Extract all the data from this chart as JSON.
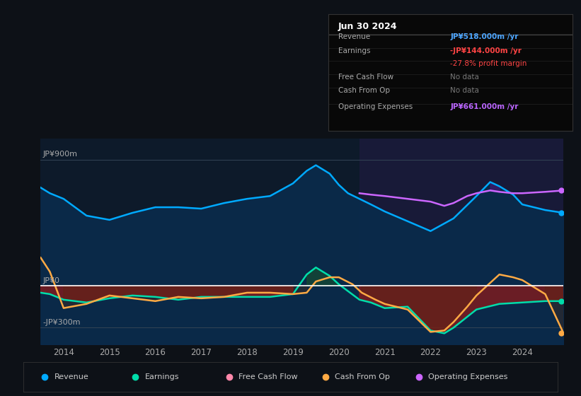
{
  "bg_color": "#0d1117",
  "chart_bg": "#0d1a2a",
  "forecast_bg": "#1a1a3a",
  "title_box_date": "Jun 30 2024",
  "info_rows": [
    {
      "label": "Revenue",
      "value": "JP¥518.000m /yr",
      "value_color": "#4da6ff",
      "bold": true
    },
    {
      "label": "Earnings",
      "value": "-JP¥144.000m /yr",
      "value_color": "#ff4444",
      "bold": true
    },
    {
      "label": "",
      "value": "-27.8% profit margin",
      "value_color": "#ff4444",
      "bold": false
    },
    {
      "label": "Free Cash Flow",
      "value": "No data",
      "value_color": "#777777",
      "bold": false
    },
    {
      "label": "Cash From Op",
      "value": "No data",
      "value_color": "#777777",
      "bold": false
    },
    {
      "label": "Operating Expenses",
      "value": "JP¥661.000m /yr",
      "value_color": "#bb66ff",
      "bold": true
    }
  ],
  "ylabel_top": "JP¥900m",
  "ylabel_zero": "JP¥0",
  "ylabel_bot": "-JP¥300m",
  "ylim": [
    -420,
    1050
  ],
  "y_zero": 0,
  "y_900": 900,
  "y_neg300": -300,
  "xlim_start": 2013.5,
  "xlim_end": 2024.9,
  "forecast_start": 2020.45,
  "xtick_labels": [
    "2014",
    "2015",
    "2016",
    "2017",
    "2018",
    "2019",
    "2020",
    "2021",
    "2022",
    "2023",
    "2024"
  ],
  "xtick_values": [
    2014,
    2015,
    2016,
    2017,
    2018,
    2019,
    2020,
    2021,
    2022,
    2023,
    2024
  ],
  "revenue_color": "#00aaff",
  "earnings_color": "#00ddaa",
  "fcf_color": "#ff88aa",
  "cashfromop_color": "#ffaa44",
  "opex_color": "#cc66ff",
  "revenue_fill_color": "#0a2a4a",
  "opex_fill_color": "#3a1a6a",
  "legend_items": [
    {
      "label": "Revenue",
      "color": "#00aaff"
    },
    {
      "label": "Earnings",
      "color": "#00ddaa"
    },
    {
      "label": "Free Cash Flow",
      "color": "#ff88aa"
    },
    {
      "label": "Cash From Op",
      "color": "#ffaa44"
    },
    {
      "label": "Operating Expenses",
      "color": "#cc66ff"
    }
  ],
  "revenue_x": [
    2013.5,
    2013.7,
    2014.0,
    2014.5,
    2015.0,
    2015.5,
    2016.0,
    2016.5,
    2017.0,
    2017.5,
    2018.0,
    2018.5,
    2019.0,
    2019.3,
    2019.5,
    2019.8,
    2020.0,
    2020.2,
    2020.45,
    2020.7,
    2021.0,
    2021.5,
    2022.0,
    2022.5,
    2023.0,
    2023.3,
    2023.5,
    2023.8,
    2024.0,
    2024.5,
    2024.9
  ],
  "revenue_y": [
    700,
    660,
    620,
    500,
    470,
    520,
    560,
    560,
    550,
    590,
    620,
    640,
    730,
    820,
    860,
    800,
    720,
    660,
    620,
    580,
    530,
    460,
    390,
    480,
    640,
    740,
    710,
    650,
    580,
    540,
    520
  ],
  "opex_x": [
    2020.45,
    2020.7,
    2021.0,
    2021.5,
    2022.0,
    2022.3,
    2022.5,
    2022.8,
    2023.0,
    2023.3,
    2023.5,
    2023.8,
    2024.0,
    2024.5,
    2024.9
  ],
  "opex_y": [
    660,
    650,
    640,
    620,
    600,
    570,
    590,
    640,
    660,
    680,
    670,
    660,
    660,
    670,
    680
  ],
  "earnings_x": [
    2013.5,
    2013.7,
    2014.0,
    2014.5,
    2015.0,
    2015.5,
    2016.0,
    2016.5,
    2017.0,
    2017.5,
    2018.0,
    2018.5,
    2019.0,
    2019.3,
    2019.5,
    2019.8,
    2020.0,
    2020.45,
    2020.7,
    2021.0,
    2021.5,
    2022.0,
    2022.3,
    2022.5,
    2023.0,
    2023.5,
    2024.0,
    2024.5,
    2024.9
  ],
  "earnings_y": [
    -50,
    -60,
    -100,
    -120,
    -90,
    -70,
    -80,
    -100,
    -80,
    -80,
    -80,
    -80,
    -60,
    80,
    130,
    70,
    10,
    -100,
    -120,
    -160,
    -150,
    -320,
    -340,
    -300,
    -170,
    -130,
    -120,
    -110,
    -110
  ],
  "cashfromop_x": [
    2013.5,
    2013.7,
    2014.0,
    2014.5,
    2015.0,
    2015.5,
    2016.0,
    2016.5,
    2017.0,
    2017.5,
    2018.0,
    2018.5,
    2019.0,
    2019.3,
    2019.5,
    2019.8,
    2020.0,
    2020.3,
    2020.5,
    2020.8,
    2021.0,
    2021.5,
    2022.0,
    2022.3,
    2022.5,
    2022.8,
    2023.0,
    2023.3,
    2023.5,
    2023.8,
    2024.0,
    2024.5,
    2024.9
  ],
  "cashfromop_y": [
    200,
    100,
    -160,
    -130,
    -70,
    -90,
    -110,
    -80,
    -90,
    -80,
    -50,
    -50,
    -60,
    -50,
    30,
    60,
    60,
    10,
    -50,
    -100,
    -130,
    -170,
    -330,
    -320,
    -260,
    -150,
    -70,
    20,
    80,
    60,
    40,
    -60,
    -340
  ]
}
